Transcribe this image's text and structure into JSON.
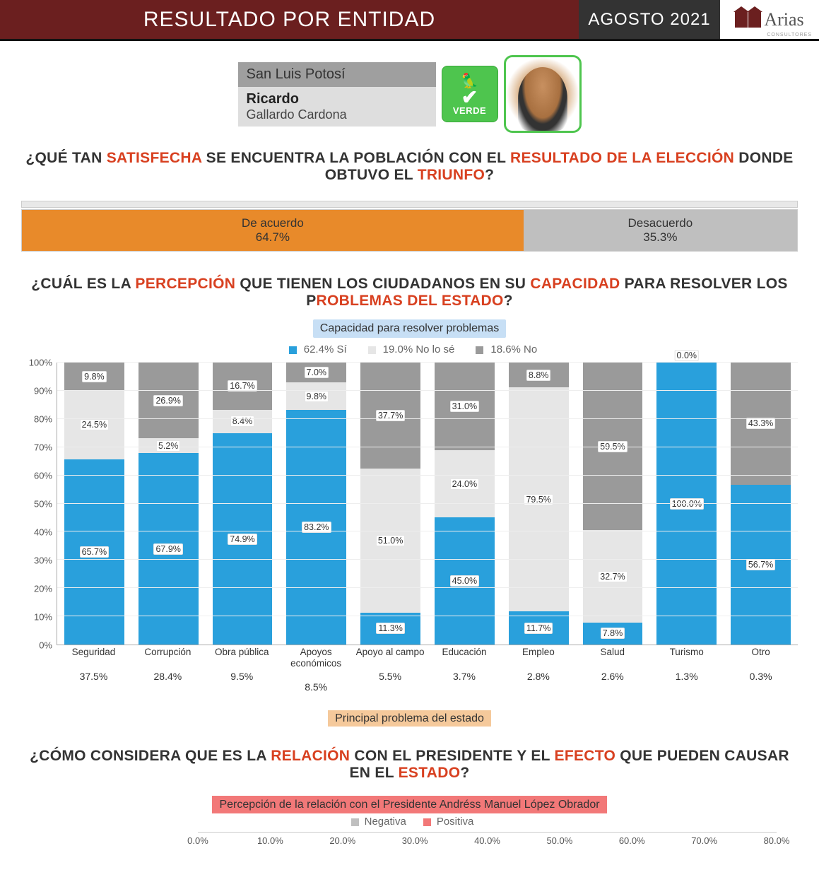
{
  "header": {
    "title": "RESULTADO POR ENTIDAD",
    "date": "AGOSTO 2021",
    "brand": "Arias",
    "brand_sub": "CONSULTORES",
    "header_bg_left": "#6b1f1f",
    "header_bg_mid": "#333333"
  },
  "profile": {
    "state": "San Luis Potosí",
    "first_name": "Ricardo",
    "last_name": "Gallardo Cardona",
    "party_label": "VERDE",
    "party_color": "#4ec54e"
  },
  "q1": {
    "prefix": "¿QUÉ TAN ",
    "hl1": "SATISFECHA",
    "mid1": " SE ENCUENTRA LA POBLACIÓN CON EL ",
    "hl2": "RESULTADO DE LA ELECCIÓN",
    "mid2": " DONDE OBTUVO EL ",
    "hl3": "TRIUNFO",
    "suffix": "?"
  },
  "satisfaction": {
    "agree_label": "De acuerdo",
    "agree_pct": "64.7%",
    "agree_val": 64.7,
    "agree_color": "#e88a2a",
    "disagree_label": "Desacuerdo",
    "disagree_pct": "35.3%",
    "disagree_val": 35.3,
    "disagree_color": "#bfbfbf"
  },
  "q2": {
    "prefix": "¿CUÁL ES LA ",
    "hl1": "PERCEPCIÓN",
    "mid1": " QUE TIENEN LOS CIUDADANOS EN SU ",
    "hl2": "CAPACIDAD",
    "mid2": " PARA RESOLVER LOS P",
    "hl3": "ROBLEMAS DEL ESTADO",
    "suffix": "?"
  },
  "capacity": {
    "title": "Capacidad para resolver problemas",
    "title_bg": "#c7dff5",
    "legend": [
      {
        "sw": "#29a0dc",
        "text": "62.4% Sí"
      },
      {
        "sw": "#e6e6e6",
        "text": "19.0% No lo sé"
      },
      {
        "sw": "#9a9a9a",
        "text": "18.6% No"
      }
    ],
    "colors": {
      "si": "#29a0dc",
      "nose": "#e6e6e6",
      "no": "#9a9a9a"
    },
    "ylim": [
      0,
      100
    ],
    "ytick_step": 10,
    "categories": [
      {
        "name": "Seguridad",
        "si": 65.7,
        "nose": 24.5,
        "no": 9.8,
        "problem": "37.5%"
      },
      {
        "name": "Corrupción",
        "si": 67.9,
        "nose": 5.2,
        "no": 26.9,
        "problem": "28.4%"
      },
      {
        "name": "Obra pública",
        "si": 74.9,
        "nose": 8.4,
        "no": 16.7,
        "problem": "9.5%"
      },
      {
        "name": "Apoyos económicos",
        "si": 83.2,
        "nose": 9.8,
        "no": 7.0,
        "problem": "8.5%"
      },
      {
        "name": "Apoyo al campo",
        "si": 11.3,
        "nose": 51.0,
        "no": 37.7,
        "problem": "5.5%"
      },
      {
        "name": "Educación",
        "si": 45.0,
        "nose": 24.0,
        "no": 31.0,
        "problem": "3.7%"
      },
      {
        "name": "Empleo",
        "si": 11.7,
        "nose": 79.5,
        "no": 8.8,
        "problem": "2.8%"
      },
      {
        "name": "Salud",
        "si": 7.8,
        "nose": 32.7,
        "no": 59.5,
        "problem": "2.6%"
      },
      {
        "name": "Turismo",
        "si": 100.0,
        "nose": 0.0,
        "no": 0.0,
        "problem": "1.3%",
        "no_label_top": true
      },
      {
        "name": "Otro",
        "si": 56.7,
        "nose": 0.0,
        "no": 43.3,
        "problem": "0.3%"
      }
    ],
    "problem_title": "Principal problema del estado",
    "problem_title_bg": "#f5c99b"
  },
  "q3": {
    "prefix": "¿CÓMO CONSIDERA QUE ES LA ",
    "hl1": "RELACIÓN",
    "mid1": " CON EL PRESIDENTE Y EL ",
    "hl2": "EFECTO",
    "mid2": " QUE PUEDEN CAUSAR EN EL ",
    "hl3": "ESTADO",
    "suffix": "?"
  },
  "relation": {
    "title": "Percepción de la relación con el Presidente Andréss Manuel López Obrador",
    "title_bg": "#f27878",
    "legend": [
      {
        "sw": "#bfbfbf",
        "text": "Negativa"
      },
      {
        "sw": "#f27878",
        "text": "Positiva"
      }
    ],
    "xticks": [
      "0.0%",
      "10.0%",
      "20.0%",
      "30.0%",
      "40.0%",
      "50.0%",
      "60.0%",
      "70.0%",
      "80.0%"
    ],
    "xlim": [
      0,
      80
    ]
  }
}
